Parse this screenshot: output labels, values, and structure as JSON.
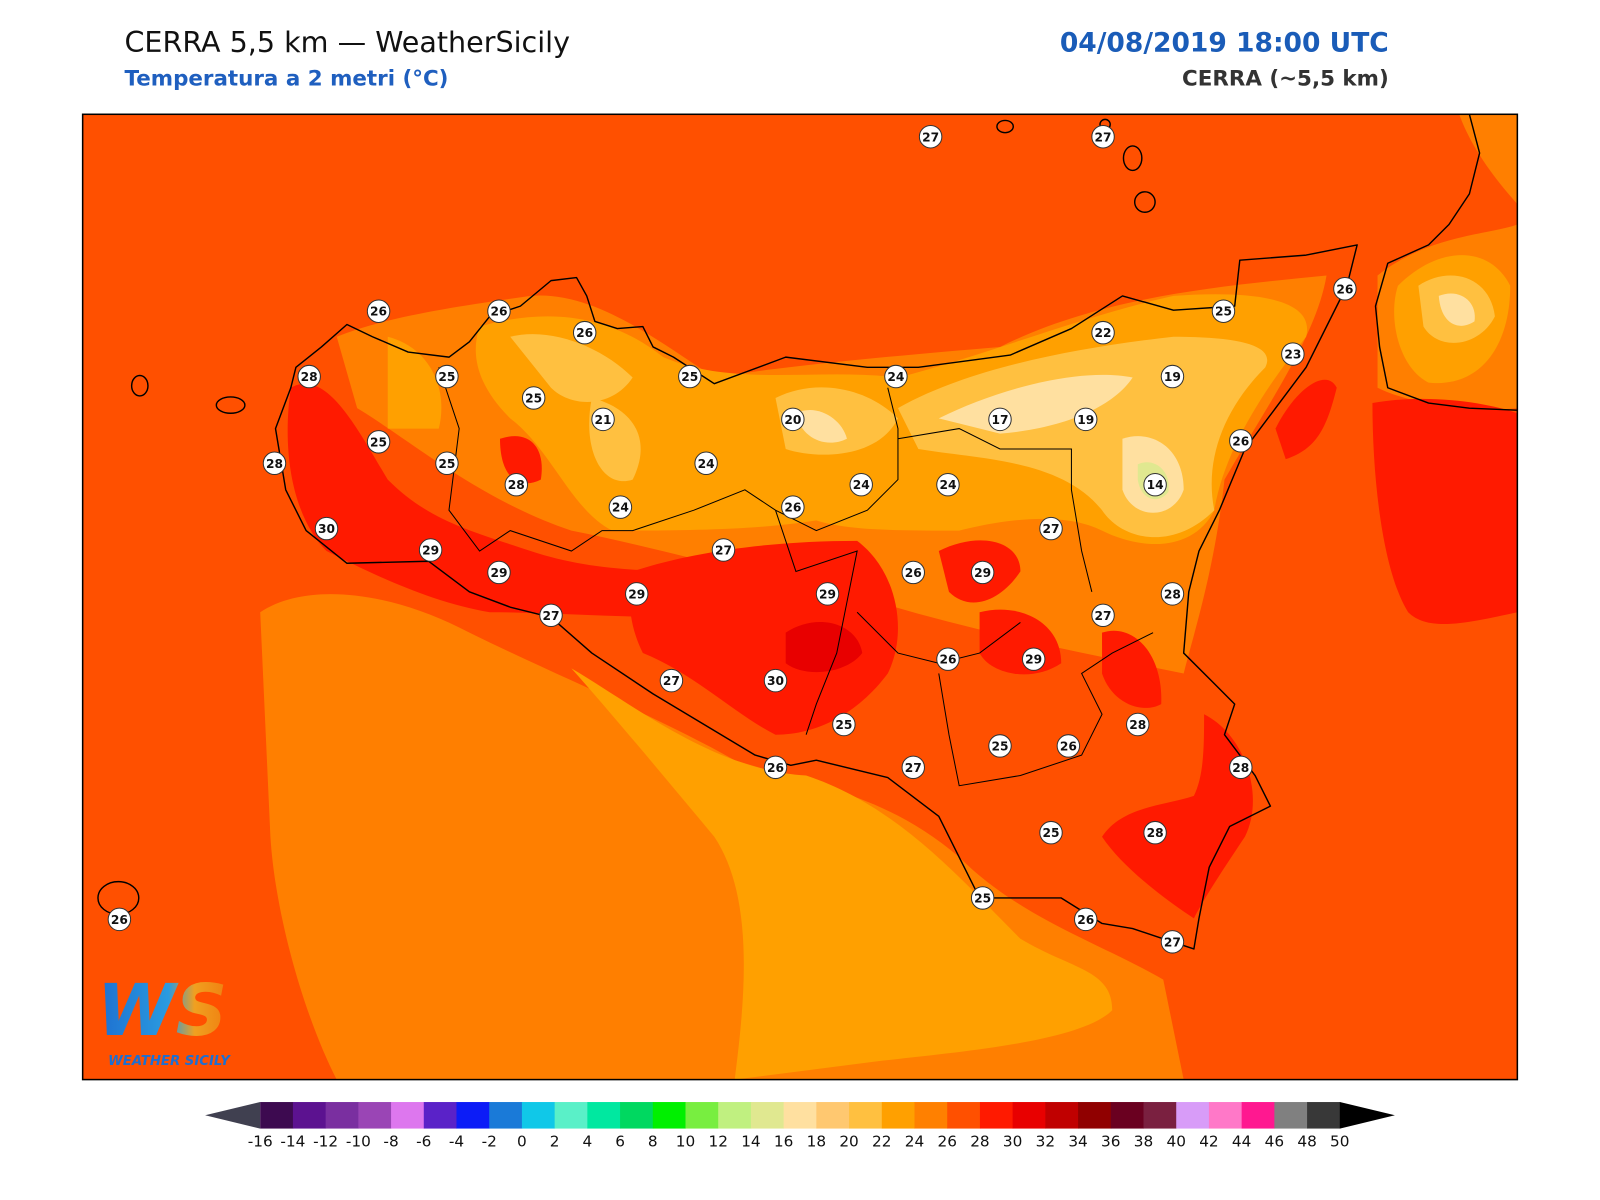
{
  "header": {
    "title": "CERRA 5,5 km — WeatherSicily",
    "subtitle": "Temperatura a 2 metri (°C)",
    "datetime": "04/08/2019 18:00 UTC",
    "model": "CERRA (~5,5 km)"
  },
  "stations": [
    27,
    27,
    26,
    26,
    26,
    25,
    26,
    22,
    23,
    28,
    25,
    25,
    25,
    24,
    19,
    21,
    20,
    17,
    19,
    25,
    25,
    28,
    24,
    26,
    28,
    24,
    24,
    14,
    24,
    26,
    30,
    27,
    29,
    27,
    29,
    26,
    29,
    29,
    29,
    28,
    27,
    27,
    26,
    29,
    27,
    30,
    25,
    28,
    26,
    27,
    25,
    26,
    28,
    25,
    28,
    25,
    26,
    27,
    26
  ],
  "colorbar": {
    "ticks": [
      -16,
      -14,
      -12,
      -10,
      -8,
      -6,
      -4,
      -2,
      0,
      2,
      4,
      6,
      8,
      10,
      12,
      14,
      16,
      18,
      20,
      22,
      24,
      26,
      28,
      30,
      32,
      34,
      36,
      38,
      40,
      42,
      44,
      46,
      48,
      50
    ],
    "colors": [
      "#3d0a50",
      "#5c1290",
      "#7a2fa0",
      "#9a45b5",
      "#dd77ee",
      "#5a22c8",
      "#0c1cf7",
      "#1a7ad8",
      "#10c8e8",
      "#5af0c8",
      "#00e8a0",
      "#00d860",
      "#00f000",
      "#78ee40",
      "#c0f080",
      "#e0e890",
      "#ffe0a0",
      "#ffc870",
      "#ffc040",
      "#ffa000",
      "#ff8000",
      "#ff5000",
      "#ff1a00",
      "#e80000",
      "#c00000",
      "#900000",
      "#6a0020",
      "#7a2040",
      "#d89cf8",
      "#ff78c8",
      "#ff1890",
      "#808080",
      "#383838"
    ],
    "under_color": "#404050",
    "over_color": "#000000"
  },
  "logo": {
    "mark": "WS",
    "name": "WEATHER SICILY"
  }
}
